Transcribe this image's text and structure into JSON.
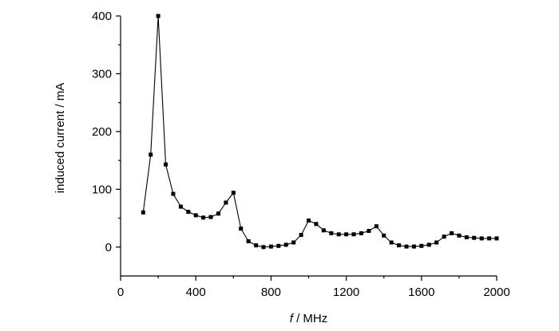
{
  "chart_data": {
    "type": "line",
    "xlabel_italic": "f",
    "xlabel_rest": " / MHz",
    "ylabel": "induced current / mA",
    "xlim": [
      0,
      2000
    ],
    "ylim": [
      -50,
      400
    ],
    "xticks": [
      0,
      400,
      800,
      1200,
      1600,
      2000
    ],
    "yticks": [
      0,
      100,
      200,
      300,
      400
    ],
    "grid": false,
    "series": [
      {
        "x": [
          120,
          160,
          200,
          240,
          280,
          320,
          360,
          400,
          440,
          480,
          520,
          560,
          600,
          640,
          680,
          720,
          760,
          800,
          840,
          880,
          920,
          960,
          1000,
          1040,
          1080,
          1120,
          1160,
          1200,
          1240,
          1280,
          1320,
          1360,
          1400,
          1440,
          1480,
          1520,
          1560,
          1600,
          1640,
          1680,
          1720,
          1760,
          1800,
          1840,
          1880,
          1920,
          1960,
          2000
        ],
        "y": [
          60,
          160,
          400,
          143,
          92,
          70,
          61,
          55,
          51,
          52,
          58,
          77,
          94,
          32,
          10,
          3,
          0,
          1,
          2,
          4,
          8,
          21,
          46,
          40,
          29,
          24,
          22,
          22,
          22,
          24,
          28,
          36,
          20,
          8,
          3,
          1,
          1,
          2,
          4,
          8,
          18,
          24,
          20,
          17,
          16,
          15,
          15,
          15
        ]
      }
    ]
  }
}
